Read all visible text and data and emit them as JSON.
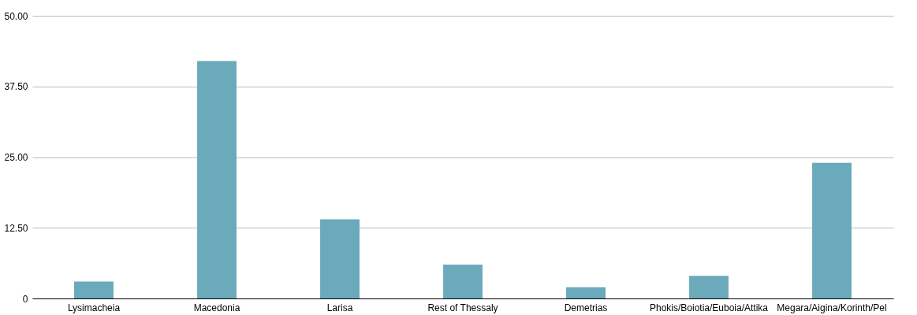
{
  "chart_data": {
    "type": "bar",
    "categories": [
      "Lysimacheia",
      "Macedonia",
      "Larisa",
      "Rest of Thessaly",
      "Demetrias",
      "Phokis/Boiotia/Euboia/Attika",
      "Megara/Aigina/Korinth/Pel"
    ],
    "values": [
      3,
      42,
      14,
      6,
      2,
      4,
      24
    ],
    "color": "#6aaabb",
    "ylim": [
      0,
      50
    ],
    "yticks": [
      0,
      {
        "value": 12.5,
        "label": "12.50"
      },
      {
        "value": 25,
        "label": "25.00"
      },
      {
        "value": 37.5,
        "label": "37.50"
      },
      {
        "value": 50,
        "label": "50.00"
      }
    ],
    "grid": "y"
  }
}
